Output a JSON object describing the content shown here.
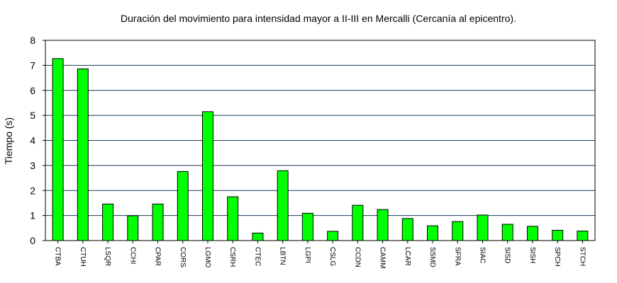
{
  "chart_data": {
    "type": "bar",
    "title": "Duración del movimiento para intensidad mayor a II-III en Mercalli (Cercanía al epicentro).",
    "xlabel": "",
    "ylabel": "Tiempo (s)",
    "ylim": [
      0,
      8
    ],
    "yticks": [
      0,
      1,
      2,
      3,
      4,
      5,
      6,
      7,
      8
    ],
    "grid": true,
    "legend": "none",
    "bar_color": "#00ff00",
    "categories": [
      "CTBA",
      "CTUH",
      "LSQR",
      "CCHI",
      "CPAR",
      "CORS",
      "LGMO",
      "CSRH",
      "CTEC",
      "LBTN",
      "LGPI",
      "CSLG",
      "CCDN",
      "CAMM",
      "LCAR",
      "SSMD",
      "SFRA",
      "SIAC",
      "SISD",
      "SISH",
      "SPCH",
      "STCH"
    ],
    "values": [
      7.27,
      6.86,
      1.46,
      0.99,
      1.46,
      2.76,
      5.15,
      1.75,
      0.3,
      2.79,
      1.09,
      0.37,
      1.41,
      1.24,
      0.88,
      0.59,
      0.76,
      1.02,
      0.65,
      0.57,
      0.41,
      0.38
    ]
  }
}
